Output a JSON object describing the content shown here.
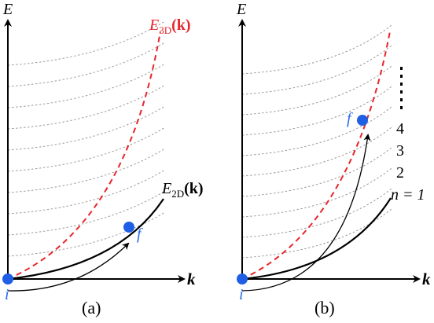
{
  "panels": [
    {
      "id": "a",
      "caption": "(a)",
      "energy_axis_label": "E",
      "momentum_axis_label": "k",
      "curve_3d_label": {
        "base": "E",
        "sub": "3D",
        "arg": "(k)"
      },
      "curve_2d_label": {
        "base": "E",
        "sub": "2D",
        "arg": "(k)"
      },
      "initial_state_label": "i",
      "final_state_label": "f"
    },
    {
      "id": "b",
      "caption": "(b)",
      "energy_axis_label": "E",
      "momentum_axis_label": "k",
      "initial_state_label": "i",
      "final_state_label": "f",
      "subband_labels": [
        "4",
        "3",
        "2"
      ],
      "subband_n1_label": "n = 1",
      "ellipsis": "⋮"
    }
  ],
  "colors": {
    "state_dot": "#1f5fe6",
    "state_label": "#2a6be8",
    "curve_3d": "#e8252b",
    "subband_dashed": "#9a9a9a",
    "axis": "#000000"
  }
}
